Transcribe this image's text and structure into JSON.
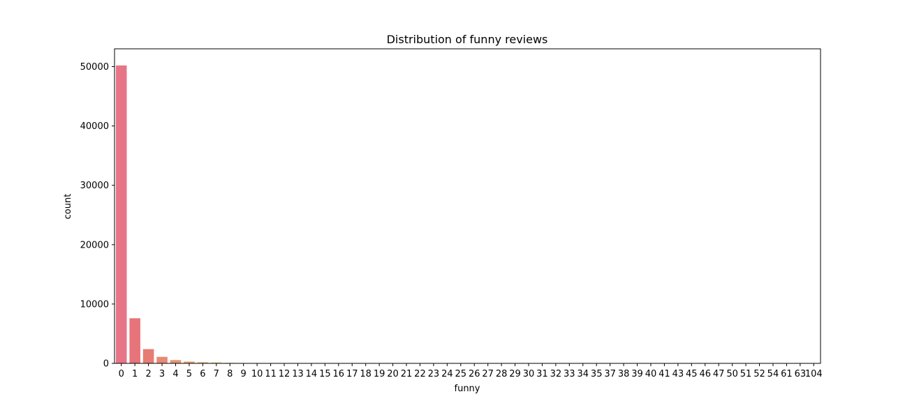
{
  "chart_data": {
    "type": "bar",
    "title": "Distribution of funny reviews",
    "xlabel": "funny",
    "ylabel": "count",
    "ylim": [
      0,
      53000
    ],
    "yticks": [
      0,
      10000,
      20000,
      30000,
      40000,
      50000
    ],
    "grid": false,
    "categories": [
      "0",
      "1",
      "2",
      "3",
      "4",
      "5",
      "6",
      "7",
      "8",
      "9",
      "10",
      "11",
      "12",
      "13",
      "14",
      "15",
      "16",
      "17",
      "18",
      "19",
      "20",
      "21",
      "22",
      "23",
      "24",
      "25",
      "26",
      "27",
      "28",
      "29",
      "30",
      "31",
      "32",
      "33",
      "34",
      "35",
      "37",
      "38",
      "39",
      "40",
      "41",
      "43",
      "45",
      "46",
      "47",
      "50",
      "51",
      "52",
      "54",
      "61",
      "63",
      "104"
    ],
    "values": [
      50200,
      7600,
      2400,
      1100,
      560,
      310,
      190,
      140,
      90,
      70,
      55,
      45,
      38,
      32,
      27,
      22,
      18,
      15,
      12,
      10,
      9,
      8,
      7,
      6,
      5,
      5,
      4,
      4,
      3,
      3,
      3,
      2,
      2,
      2,
      2,
      2,
      1,
      1,
      1,
      1,
      1,
      1,
      1,
      1,
      1,
      1,
      1,
      1,
      1,
      1,
      1,
      1
    ]
  }
}
